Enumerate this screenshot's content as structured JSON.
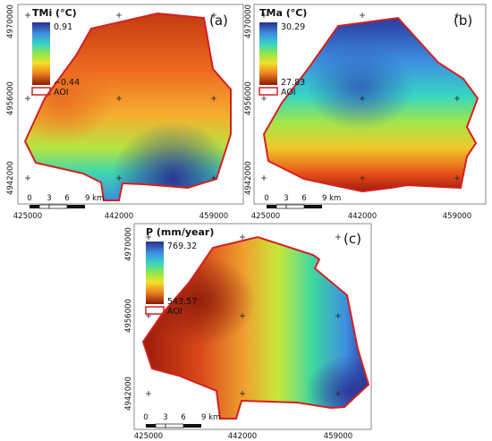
{
  "colors": {
    "aoi_outline": "#d42020",
    "frame": "#6f6f6f",
    "ramp_high": "#2b2e92",
    "ramp_low": "#8b1a0a"
  },
  "panels": {
    "a": {
      "tag": "(a)",
      "title": "TMi (°C)",
      "legend_max": "0.91",
      "legend_min": "−0.44",
      "aoi_label": "AOI",
      "x_ticks": [
        "425000",
        "442000",
        "459000"
      ],
      "y_ticks": [
        "4970000",
        "4956000",
        "4942000"
      ],
      "scale_ticks": [
        "0",
        "3",
        "6",
        "9 km"
      ]
    },
    "b": {
      "tag": "(b)",
      "title": "TMa (°C)",
      "legend_max": "30.29",
      "legend_min": "27.83",
      "aoi_label": "AOI",
      "x_ticks": [
        "425000",
        "442000",
        "459000"
      ],
      "y_ticks": [
        "4970000",
        "4956000",
        "4942000"
      ],
      "scale_ticks": [
        "0",
        "3",
        "6",
        "9 km"
      ]
    },
    "c": {
      "tag": "(c)",
      "title": "P (mm/year)",
      "legend_max": "769.32",
      "legend_min": "543.57",
      "aoi_label": "AOI",
      "x_ticks": [
        "425000",
        "442000",
        "459000"
      ],
      "y_ticks": [
        "4970000",
        "4956000",
        "4942000"
      ],
      "scale_ticks": [
        "0",
        "3",
        "6",
        "9 km"
      ]
    }
  }
}
